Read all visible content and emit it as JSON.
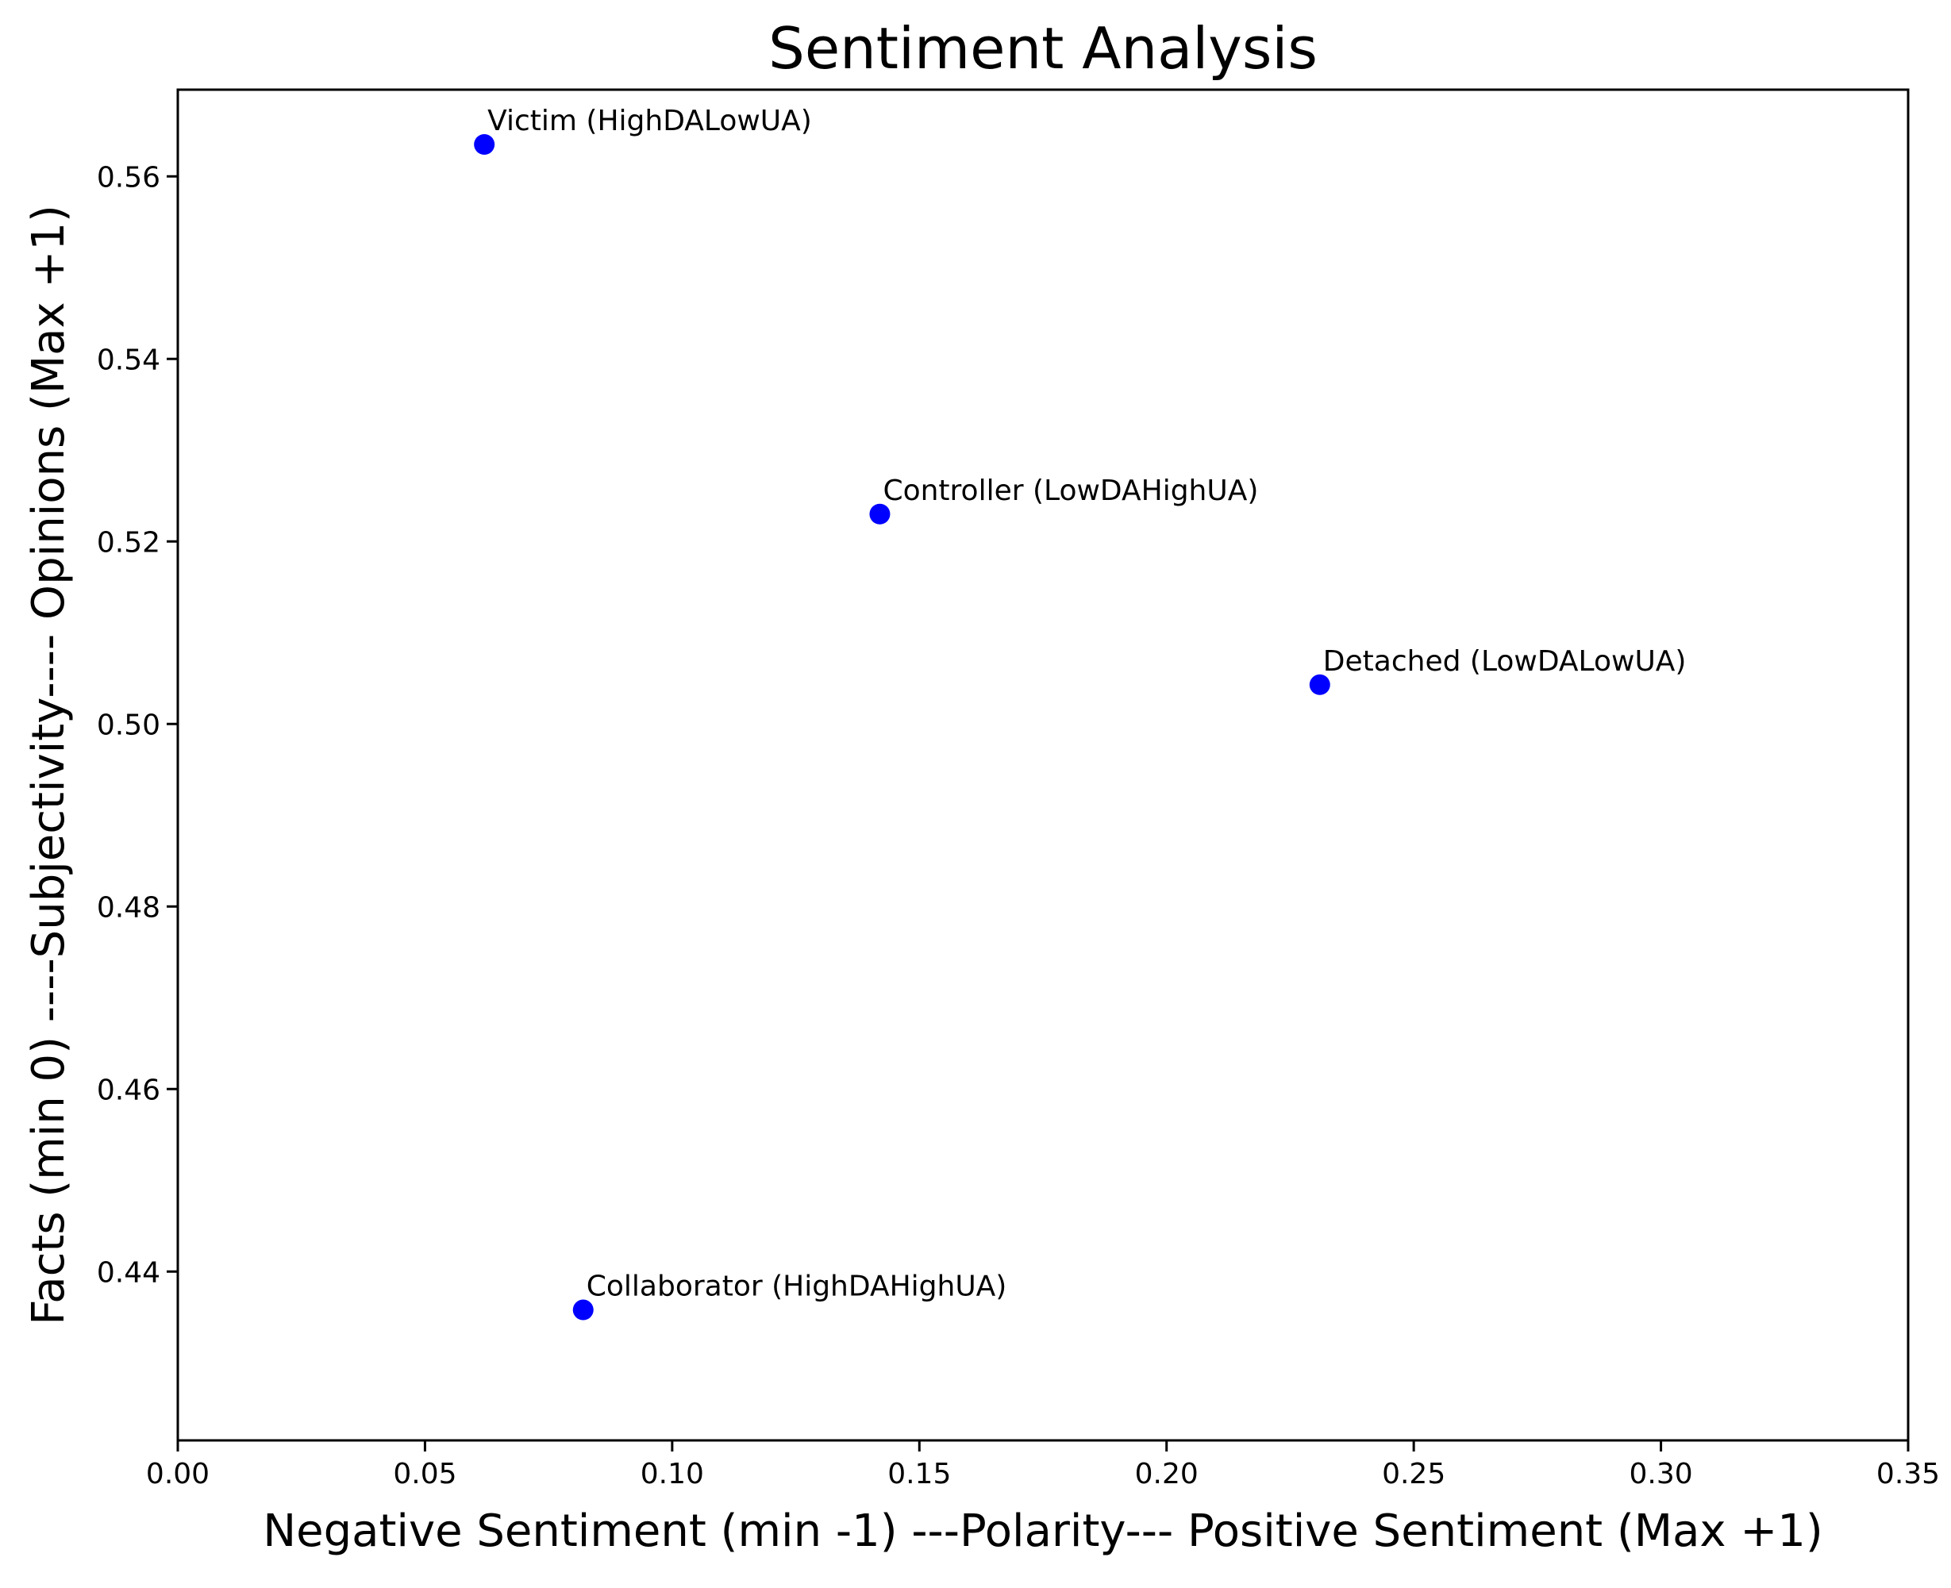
{
  "chart_data": {
    "type": "scatter",
    "title": "Sentiment Analysis",
    "xlabel": "Negative Sentiment (min -1) ---Polarity--- Positive Sentiment (Max +1)",
    "ylabel": "Facts (min 0) ----Subjectivity---- Opinions (Max +1)",
    "xlim": [
      0.0,
      0.35
    ],
    "ylim": [
      0.4215,
      0.5695
    ],
    "x_ticks": [
      0.0,
      0.05,
      0.1,
      0.15,
      0.2,
      0.25,
      0.3,
      0.35
    ],
    "x_tick_labels": [
      "0.00",
      "0.05",
      "0.10",
      "0.15",
      "0.20",
      "0.25",
      "0.30",
      "0.35"
    ],
    "y_ticks": [
      0.44,
      0.46,
      0.48,
      0.5,
      0.52,
      0.54,
      0.56
    ],
    "y_tick_labels": [
      "0.44",
      "0.46",
      "0.48",
      "0.50",
      "0.52",
      "0.54",
      "0.56"
    ],
    "grid": false,
    "marker_color": "#0000ff",
    "points": [
      {
        "label": "Victim (HighDALowUA)",
        "x": 0.062,
        "y": 0.5635
      },
      {
        "label": "Controller (LowDAHighUA)",
        "x": 0.142,
        "y": 0.523
      },
      {
        "label": "Detached (LowDALowUA)",
        "x": 0.231,
        "y": 0.5043
      },
      {
        "label": "Collaborator (HighDAHighUA)",
        "x": 0.082,
        "y": 0.4358
      }
    ]
  }
}
